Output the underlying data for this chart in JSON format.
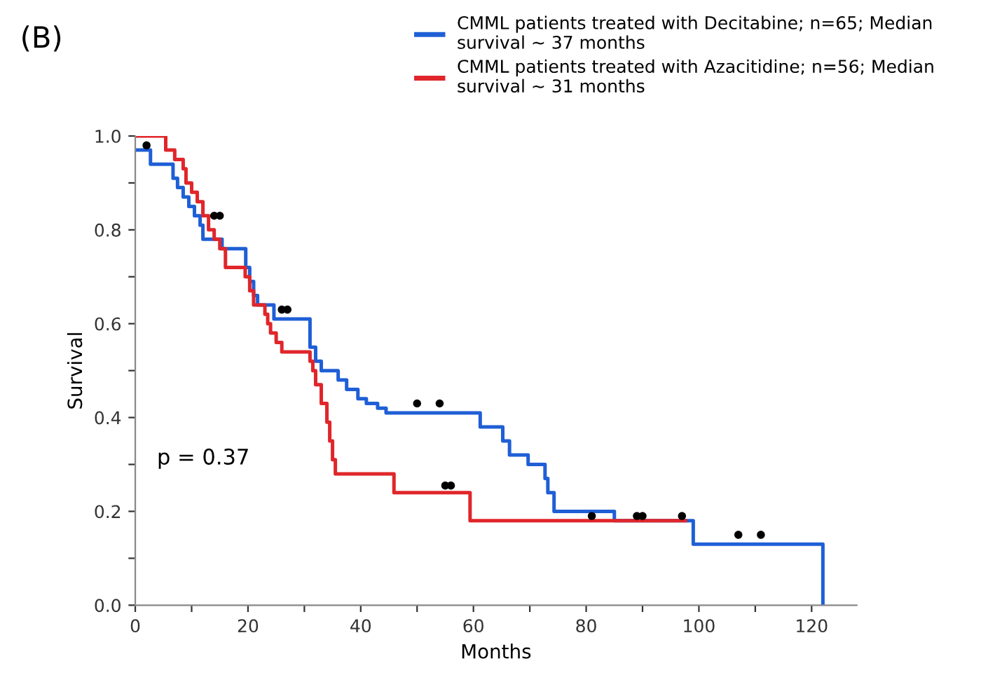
{
  "chart_data": {
    "type": "step",
    "xlabel": "Months",
    "ylabel": "Survival",
    "annotations": [
      "(B)",
      "p = 0.37"
    ],
    "legend": "top",
    "grid": false,
    "line_style": "solid",
    "xlim": [
      0,
      128
    ],
    "xticks": [
      0,
      {
        "value": 10,
        "label": null
      },
      20,
      {
        "value": 30,
        "label": null
      },
      40,
      {
        "value": 50,
        "label": null
      },
      60,
      {
        "value": 70,
        "label": null
      },
      80,
      {
        "value": 90,
        "label": null
      },
      100,
      {
        "value": 110,
        "label": null
      },
      120
    ],
    "ylim": [
      0,
      1.0
    ],
    "yticks": [
      {
        "value": 0,
        "label": "0.0"
      },
      {
        "value": 0.1,
        "label": null
      },
      0.2,
      {
        "value": 0.3,
        "label": null
      },
      0.4,
      {
        "value": 0.5,
        "label": null
      },
      0.6,
      {
        "value": 0.7,
        "label": null
      },
      0.8,
      {
        "value": 0.9,
        "label": null
      },
      {
        "value": 1.0,
        "label": "1.0"
      }
    ],
    "series": [
      {
        "name": "CMML patients treated with Decitabine; n=65; Median survival ~ 37 months",
        "color": "#1f5fd6",
        "x": [
          0,
          2.7,
          6.7,
          7.5,
          8.5,
          9.5,
          10.5,
          11.5,
          12,
          15.4,
          19.6,
          20.3,
          21,
          21.7,
          24.6,
          31,
          32,
          33,
          36,
          37.5,
          39.5,
          41,
          43,
          44.5,
          61.2,
          65.2,
          66.4,
          69.7,
          72.7,
          73.2,
          74.3,
          85,
          99,
          122,
          122
        ],
        "values": [
          0.97,
          0.94,
          0.91,
          0.89,
          0.87,
          0.85,
          0.83,
          0.81,
          0.78,
          0.76,
          0.72,
          0.69,
          0.66,
          0.64,
          0.61,
          0.55,
          0.52,
          0.5,
          0.48,
          0.46,
          0.44,
          0.43,
          0.42,
          0.41,
          0.38,
          0.35,
          0.32,
          0.3,
          0.27,
          0.24,
          0.2,
          0.18,
          0.13,
          0.13,
          0
        ]
      },
      {
        "name": "CMML patients treated with Azacitidine; n=56; Median survival ~ 31 months",
        "color": "#e0262b",
        "x": [
          0,
          5.4,
          7,
          8.5,
          9,
          10,
          11,
          12,
          13,
          14,
          15,
          16,
          19.5,
          20.3,
          21,
          23,
          23.5,
          24,
          25,
          26,
          31,
          31.5,
          32,
          33,
          34,
          34.5,
          35,
          35.5,
          45.9,
          59.4,
          97.6
        ],
        "values": [
          1.0,
          0.97,
          0.95,
          0.93,
          0.9,
          0.88,
          0.86,
          0.83,
          0.8,
          0.78,
          0.76,
          0.72,
          0.7,
          0.67,
          0.64,
          0.62,
          0.6,
          0.58,
          0.56,
          0.54,
          0.52,
          0.5,
          0.47,
          0.43,
          0.39,
          0.35,
          0.31,
          0.28,
          0.24,
          0.18,
          0.18
        ]
      },
      {
        "type": "scatter",
        "color": "#000000",
        "marker": "circle",
        "x": [
          2,
          14,
          15,
          26,
          27,
          50,
          54,
          55,
          56,
          81,
          89,
          90,
          97,
          107,
          111
        ],
        "values": [
          0.98,
          0.83,
          0.83,
          0.63,
          0.63,
          0.43,
          0.43,
          0.255,
          0.255,
          0.19,
          0.19,
          0.19,
          0.19,
          0.15,
          0.15
        ]
      }
    ]
  }
}
